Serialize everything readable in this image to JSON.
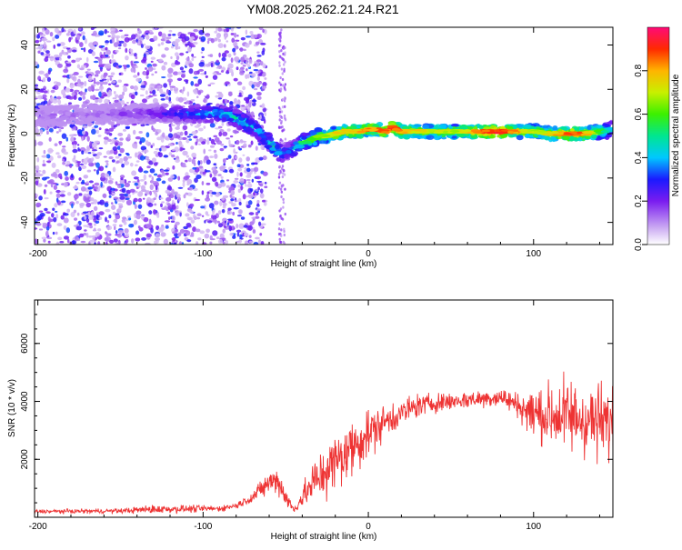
{
  "title": "YM08.2025.262.21.24.R21",
  "chart_data": [
    {
      "type": "heatmap",
      "xlabel": "Height of straight line (km)",
      "ylabel": "Frequency (Hz)",
      "xlim": [
        -202,
        148
      ],
      "ylim": [
        -50,
        48
      ],
      "xticks": [
        -200,
        -100,
        0,
        100
      ],
      "xtick_labels": [
        "-200",
        "-100",
        "0",
        "100"
      ],
      "yticks": [
        -40,
        -20,
        0,
        20,
        40
      ],
      "ytick_labels": [
        "-40",
        "-20",
        "0",
        "20",
        "40"
      ],
      "colorbar": {
        "label": "Normalized spectral amplitude",
        "range": [
          0,
          1
        ],
        "ticks": [
          0.0,
          0.2,
          0.4,
          0.6,
          0.8
        ],
        "tick_labels": [
          "0.0",
          "0.2",
          "0.4",
          "0.6",
          "0.8"
        ]
      },
      "ridge": {
        "x": [
          -202,
          -180,
          -160,
          -140,
          -120,
          -100,
          -90,
          -80,
          -75,
          -70,
          -65,
          -60,
          -55,
          -52,
          -50,
          -45,
          -40,
          -35,
          -30,
          -25,
          -20,
          -15,
          -10,
          -5,
          0,
          5,
          10,
          15,
          20,
          30,
          40,
          50,
          60,
          70,
          80,
          90,
          100,
          110,
          120,
          130,
          140,
          148
        ],
        "freq": [
          8,
          8,
          9,
          9,
          9,
          9,
          9,
          7,
          5,
          3,
          0,
          -4,
          -8,
          -9,
          -8,
          -7,
          -4,
          -3,
          -1,
          -1,
          0,
          1,
          1,
          1,
          2,
          2,
          1,
          3,
          1,
          1,
          1,
          1,
          1,
          1,
          1,
          1,
          1,
          0,
          0,
          0,
          1,
          2
        ],
        "amp": [
          0.15,
          0.15,
          0.15,
          0.2,
          0.3,
          0.4,
          0.45,
          0.5,
          0.5,
          0.45,
          0.45,
          0.5,
          0.55,
          0.4,
          0.35,
          0.45,
          0.55,
          0.6,
          0.65,
          0.7,
          0.75,
          0.75,
          0.8,
          0.8,
          0.85,
          0.85,
          0.85,
          0.95,
          0.8,
          0.75,
          0.7,
          0.7,
          0.75,
          0.9,
          0.95,
          0.8,
          0.7,
          0.75,
          0.9,
          0.85,
          0.6,
          0.4
        ]
      }
    },
    {
      "type": "line",
      "xlabel": "Height of straight line (km)",
      "ylabel": "SNR (10 * v/v)",
      "xlim": [
        -202,
        148
      ],
      "ylim": [
        0,
        7500
      ],
      "xticks": [
        -200,
        -100,
        0,
        100
      ],
      "xtick_labels": [
        "-200",
        "-100",
        "0",
        "100"
      ],
      "yticks": [
        2000,
        4000,
        6000
      ],
      "ytick_labels": [
        "2000",
        "4000",
        "6000"
      ],
      "color": "#ee3333",
      "envelope": {
        "x": [
          -202,
          -150,
          -130,
          -90,
          -80,
          -70,
          -60,
          -55,
          -50,
          -45,
          -40,
          -30,
          -20,
          -10,
          0,
          10,
          20,
          30,
          40,
          50,
          60,
          70,
          80,
          90,
          95,
          100,
          110,
          120,
          130,
          140,
          148
        ],
        "mean": [
          200,
          220,
          280,
          300,
          400,
          700,
          1200,
          1300,
          700,
          250,
          700,
          1400,
          1900,
          2400,
          2900,
          3300,
          3600,
          3850,
          3950,
          4000,
          4050,
          4100,
          4150,
          3900,
          3700,
          3600,
          3500,
          3500,
          3400,
          3300,
          3200
        ],
        "spread": [
          100,
          120,
          220,
          150,
          150,
          300,
          600,
          700,
          500,
          150,
          600,
          1300,
          1500,
          1500,
          1200,
          900,
          700,
          600,
          500,
          450,
          450,
          450,
          500,
          600,
          900,
          1300,
          1700,
          1900,
          2000,
          1900,
          1800
        ]
      }
    }
  ]
}
